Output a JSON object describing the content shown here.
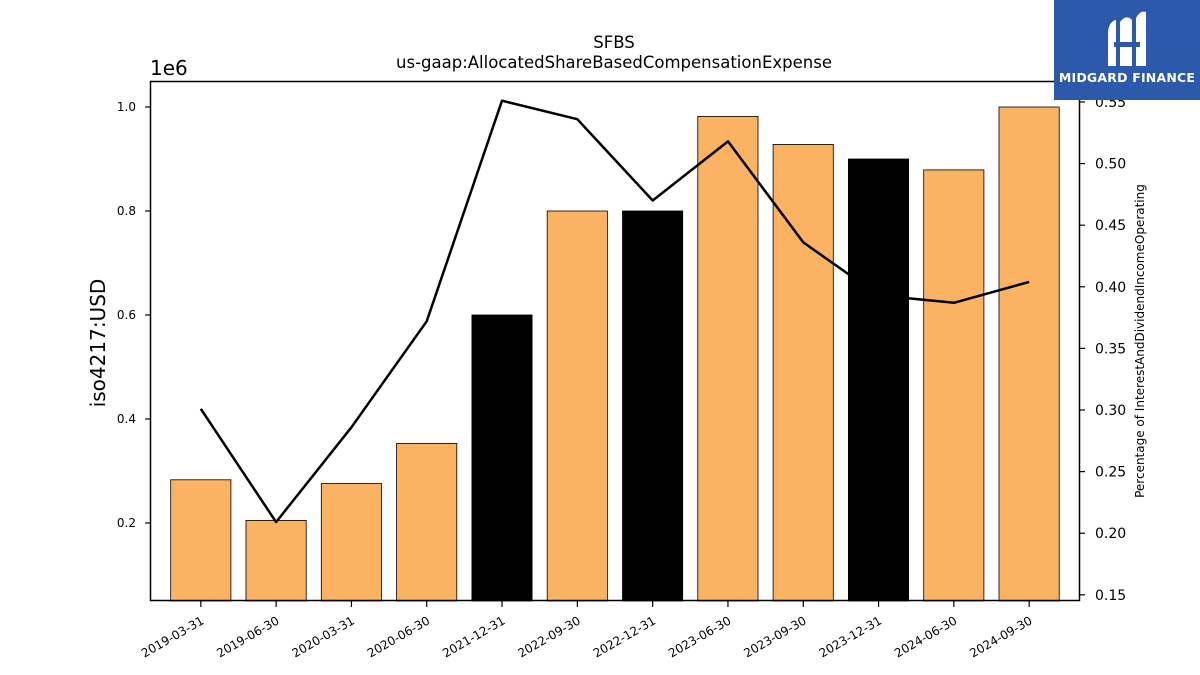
{
  "chart_data": {
    "type": "bar",
    "title": "SFBS",
    "subtitle": "us-gaap:AllocatedShareBasedCompensationExpense",
    "ylabel": "iso4217:USD",
    "y2label": "Percentage of InterestAndDividendIncomeOperating",
    "y_offset_label": "1e6",
    "categories": [
      "2019-03-31",
      "2019-06-30",
      "2020-03-31",
      "2020-06-30",
      "2021-12-31",
      "2022-09-30",
      "2022-12-31",
      "2023-06-30",
      "2023-09-30",
      "2023-12-31",
      "2024-06-30",
      "2024-09-30"
    ],
    "values": [
      283000,
      205000,
      276000,
      353000,
      600000,
      800000,
      800000,
      982000,
      928000,
      900000,
      879000,
      1000000
    ],
    "bar_colors": [
      "#fbb262",
      "#fbb262",
      "#fbb262",
      "#fbb262",
      "#000000",
      "#fbb262",
      "#000000",
      "#fbb262",
      "#fbb262",
      "#000000",
      "#fbb262",
      "#fbb262"
    ],
    "line_series": {
      "axis": "right",
      "color": "#000000",
      "values": [
        0.301,
        0.209,
        0.286,
        0.372,
        0.551,
        0.536,
        0.47,
        0.518,
        0.436,
        0.393,
        0.387,
        0.404
      ]
    },
    "ylim": [
      50000,
      1050000
    ],
    "y_ticks": [
      0.2,
      0.4,
      0.6,
      0.8,
      1.0
    ],
    "y_tick_labels": [
      "0.2",
      "0.4",
      "0.6",
      "0.8",
      "1.0"
    ],
    "y2lim": [
      0.145,
      0.567
    ],
    "y2_ticks": [
      0.15,
      0.2,
      0.25,
      0.3,
      0.35,
      0.4,
      0.45,
      0.5,
      0.55
    ],
    "y2_tick_labels": [
      "0.15",
      "0.20",
      "0.25",
      "0.30",
      "0.35",
      "0.40",
      "0.45",
      "0.50",
      "0.55"
    ],
    "grid": false,
    "legend": "none"
  },
  "logo": {
    "text": "MIDGARD FINANCE",
    "background": "#2d59aa",
    "icon": "midgard-logo-icon"
  }
}
